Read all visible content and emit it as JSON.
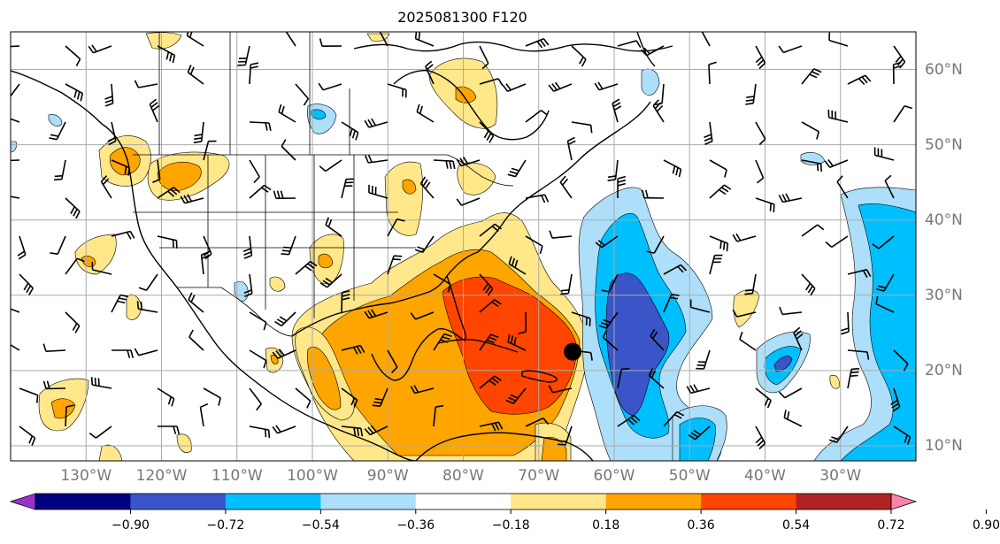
{
  "title": "2025081300 F120",
  "map": {
    "lon_labels": [
      {
        "lon": -130,
        "text": "130°W"
      },
      {
        "lon": -120,
        "text": "120°W"
      },
      {
        "lon": -110,
        "text": "110°W"
      },
      {
        "lon": -100,
        "text": "100°W"
      },
      {
        "lon": -90,
        "text": "90°W"
      },
      {
        "lon": -80,
        "text": "80°W"
      },
      {
        "lon": -70,
        "text": "70°W"
      },
      {
        "lon": -60,
        "text": "60°W"
      },
      {
        "lon": -50,
        "text": "50°W"
      },
      {
        "lon": -40,
        "text": "40°W"
      },
      {
        "lon": -30,
        "text": "30°W"
      }
    ],
    "lat_labels": [
      {
        "lat": 60,
        "text": "60°N"
      },
      {
        "lat": 50,
        "text": "50°N"
      },
      {
        "lat": 40,
        "text": "40°N"
      },
      {
        "lat": 30,
        "text": "30°N"
      },
      {
        "lat": 20,
        "text": "20°N"
      },
      {
        "lat": 10,
        "text": "10°N"
      }
    ],
    "extent": {
      "lon_min": -140,
      "lon_max": -20,
      "lat_min": 8,
      "lat_max": 65
    },
    "grid": true,
    "marker": {
      "lon": -65.5,
      "lat": 22.5,
      "color": "#000000"
    },
    "fill_colors": {
      "n090": "#9932CC",
      "n072": "#000080",
      "n054": "#3A55C8",
      "n036": "#00BFFF",
      "n018": "#ADDFFA",
      "p018": "#FFE78A",
      "p036": "#FFA500",
      "p054": "#FF4500",
      "p072": "#B22222",
      "p090": "#FF82AB"
    }
  },
  "colorbar": {
    "colors": [
      "#9932CC",
      "#000080",
      "#3A55C8",
      "#00BFFF",
      "#ADDFFA",
      "#FFFFFF",
      "#FFE78A",
      "#FFA500",
      "#FF4500",
      "#B22222",
      "#FF82AB"
    ],
    "ticks": [
      "−0.90",
      "−0.72",
      "−0.54",
      "−0.36",
      "−0.18",
      "0.18",
      "0.36",
      "0.54",
      "0.72",
      "0.90"
    ],
    "extend": "both"
  }
}
